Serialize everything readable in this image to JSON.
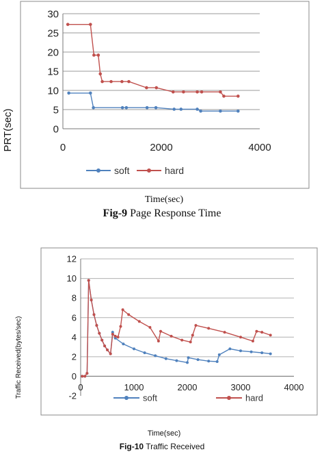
{
  "figures": [
    {
      "id": "fig9",
      "caption_num": "Fig-9",
      "caption_text": " Page Response Time",
      "chart_data": {
        "type": "line",
        "title": "",
        "xlabel": "Time(sec)",
        "ylabel": "PRT(sec)",
        "xlim": [
          0,
          4000
        ],
        "ylim": [
          0,
          30
        ],
        "xticks": [
          0,
          2000,
          4000
        ],
        "yticks": [
          0,
          5,
          10,
          15,
          20,
          25,
          30
        ],
        "grid": "horizontal",
        "legend_position": "bottom",
        "series": [
          {
            "name": "soft",
            "color": "#4f81bd",
            "x": [
              120,
              560,
              620,
              1210,
              1290,
              1710,
              1890,
              2260,
              2400,
              2730,
              2800,
              3200,
              3560
            ],
            "y": [
              9.3,
              9.3,
              5.5,
              5.5,
              5.5,
              5.5,
              5.5,
              5.1,
              5.1,
              5.1,
              4.6,
              4.6,
              4.6
            ]
          },
          {
            "name": "hard",
            "color": "#c0504d",
            "x": [
              100,
              560,
              630,
              720,
              760,
              800,
              980,
              1200,
              1340,
              1700,
              1900,
              2240,
              2450,
              2730,
              2820,
              3200,
              3270,
              3560
            ],
            "y": [
              27.2,
              27.2,
              19.2,
              19.2,
              14.3,
              12.3,
              12.3,
              12.3,
              12.3,
              10.7,
              10.7,
              9.6,
              9.6,
              9.6,
              9.6,
              9.6,
              8.5,
              8.5
            ]
          }
        ]
      }
    },
    {
      "id": "fig10",
      "caption_num": "Fig-10",
      "caption_text": " Traffic Received",
      "chart_data": {
        "type": "line",
        "title": "",
        "xlabel": "Time(sec)",
        "ylabel": "Traffic Received(bytes/sec)",
        "xlim": [
          0,
          4000
        ],
        "ylim": [
          -2,
          12
        ],
        "xticks": [
          0,
          1000,
          2000,
          3000,
          4000
        ],
        "yticks": [
          -2,
          0,
          2,
          4,
          6,
          8,
          10,
          12
        ],
        "grid": "horizontal",
        "legend_position": "bottom",
        "series": [
          {
            "name": "soft",
            "color": "#4f81bd",
            "x": [
              30,
              80,
              120,
              150,
              200,
              250,
              300,
              350,
              400,
              450,
              500,
              560,
              600,
              650,
              800,
              1000,
              1200,
              1400,
              1600,
              1800,
              2000,
              2020,
              2200,
              2400,
              2560,
              2600,
              2800,
              3000,
              3200,
              3400,
              3560
            ],
            "y": [
              0,
              0,
              0.3,
              9.8,
              7.8,
              6.3,
              5.2,
              4.4,
              3.7,
              3.1,
              2.7,
              2.3,
              4.5,
              3.9,
              3.3,
              2.8,
              2.4,
              2.1,
              1.8,
              1.6,
              1.4,
              1.9,
              1.7,
              1.55,
              1.5,
              2.2,
              2.8,
              2.6,
              2.5,
              2.4,
              2.3
            ]
          },
          {
            "name": "hard",
            "color": "#c0504d",
            "x": [
              30,
              80,
              120,
              150,
              200,
              250,
              300,
              350,
              400,
              450,
              500,
              560,
              600,
              650,
              700,
              750,
              790,
              900,
              1100,
              1300,
              1460,
              1500,
              1700,
              1900,
              2060,
              2100,
              2160,
              2400,
              2700,
              3000,
              3230,
              3300,
              3400,
              3560
            ],
            "y": [
              0,
              0,
              0.3,
              9.8,
              7.8,
              6.3,
              5.2,
              4.4,
              3.7,
              3.1,
              2.7,
              2.3,
              4.3,
              4.1,
              4.0,
              5.1,
              6.8,
              6.3,
              5.6,
              5.0,
              3.6,
              4.6,
              4.1,
              3.7,
              3.5,
              4.2,
              5.2,
              4.9,
              4.5,
              4.0,
              3.6,
              4.6,
              4.5,
              4.2
            ]
          }
        ]
      }
    }
  ]
}
